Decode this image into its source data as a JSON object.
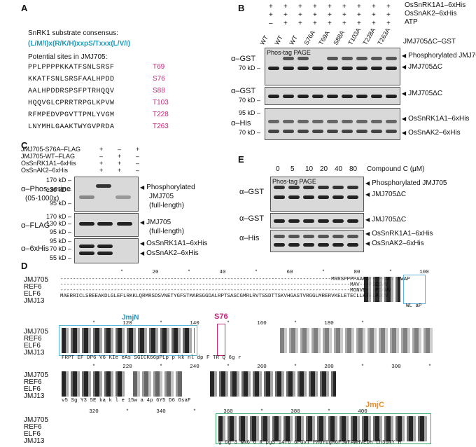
{
  "panelA": {
    "label": "A",
    "consensus_title": "SnRK1 substrate consensus:",
    "consensus_seq": "(L/M/I)x(R/K/H)xxpS/Txxx(L/V/I)",
    "potential_title": "Potential sites in JMJ705:",
    "sites": [
      {
        "seq": "PPLPPPPKKATFSNLSRSF",
        "site": "T69"
      },
      {
        "seq": "KKATFSNLSRSFAALHPDD",
        "site": "S76"
      },
      {
        "seq": "AALHPDDRSPSFPTRHQQV",
        "site": "S88"
      },
      {
        "seq": "HQQVGLCPRRTRPGLKPVW",
        "site": "T103"
      },
      {
        "seq": "RFMPEDVPGVTTPMLYVGM",
        "site": "T228"
      },
      {
        "seq": "LNYMHLGAAKTWYGVPRDA",
        "site": "T263"
      }
    ]
  },
  "panelB": {
    "label": "B",
    "row_labels": [
      "OsSnRK1A1–6xHis",
      "OsSnAK2–6xHis",
      "ATP"
    ],
    "row_signs": [
      [
        "+",
        "+",
        "+",
        "+",
        "+",
        "+",
        "+",
        "+",
        "+"
      ],
      [
        "+",
        "+",
        "+",
        "+",
        "+",
        "+",
        "+",
        "+",
        "+"
      ],
      [
        "–",
        "+",
        "+",
        "+",
        "+",
        "+",
        "+",
        "+",
        "+"
      ]
    ],
    "lanes": [
      "WT",
      "WT",
      "WT",
      "S76A",
      "T69A",
      "S88A",
      "T103A",
      "T228A",
      "T263A"
    ],
    "construct": "JMJ705ΔC–GST",
    "blot1_ab": "α–GST",
    "blot1_tag": "Phos-tag PAGE",
    "blot1_mw": "70 kD",
    "blot1_bands": [
      "Phosphorylated JMJ705",
      "JMJ705ΔC"
    ],
    "blot2_ab": "α–GST",
    "blot2_mw": "70 kD",
    "blot2_bands": [
      "JMJ705ΔC"
    ],
    "blot3_ab": "α–His",
    "blot3_mw": [
      "95 kD",
      "70 kD"
    ],
    "blot3_bands": [
      "OsSnRK1A1–6xHis",
      "OsSnAK2–6xHis"
    ]
  },
  "panelC": {
    "label": "C",
    "row_labels": [
      "JMJ705-S76A–FLAG",
      "JMJ705-WT–FLAG",
      "OsSnRK1A1–6xHis",
      "OsSnAK2–6xHis"
    ],
    "row_signs": [
      [
        "+",
        "–",
        "+"
      ],
      [
        "–",
        "+",
        "–"
      ],
      [
        "+",
        "+",
        "–"
      ],
      [
        "+",
        "+",
        "–"
      ]
    ],
    "blot1_ab": "α–Phos-serine",
    "blot1_ab2": "(05-1000x)",
    "blot1_mw": [
      "170 kD",
      "130 kD",
      "95 kD"
    ],
    "blot1_bands": [
      "Phosphorylated",
      "JMJ705",
      "(full-length)"
    ],
    "blot2_ab": "α–FLAG",
    "blot2_mw": [
      "170 kD",
      "130 kD",
      "95 kD"
    ],
    "blot2_bands": [
      "JMJ705",
      "(full-length)"
    ],
    "blot3_ab": "α–6xHis",
    "blot3_mw": [
      "95 kD",
      "70 kD",
      "55 kD"
    ],
    "blot3_bands": [
      "OsSnRK1A1–6xHis",
      "OsSnAK2–6xHis"
    ]
  },
  "panelE": {
    "label": "E",
    "concentrations": [
      "0",
      "5",
      "10",
      "20",
      "40",
      "80"
    ],
    "compound": "Compound C (μM)",
    "blot1_ab": "α–GST",
    "blot1_tag": "Phos-tag PAGE",
    "blot1_bands": [
      "Phosphorylated JMJ705",
      "JMJ705ΔC"
    ],
    "blot2_ab": "α–GST",
    "blot2_bands": [
      "JMJ705ΔC"
    ],
    "blot3_ab": "α–His",
    "blot3_bands": [
      "OsSnRK1A1–6xHis",
      "OsSnAK2–6xHis"
    ]
  },
  "panelD": {
    "label": "D",
    "names": [
      "JMJ705",
      "REF6",
      "ELF6",
      "JMJ13"
    ],
    "ruler1": [
      "*",
      "20",
      "*",
      "40",
      "*",
      "60",
      "*",
      "80",
      "*",
      "100"
    ],
    "ruler2": [
      "*",
      "120",
      "*",
      "140",
      "*",
      "160",
      "*",
      "180",
      "*"
    ],
    "ruler3": [
      "*",
      "220",
      "*",
      "240",
      "*",
      "260",
      "*",
      "280",
      "*",
      "300",
      "*"
    ],
    "ruler4": [
      "320",
      "*",
      "340",
      "*",
      "360",
      "*",
      "380",
      "*",
      "400"
    ],
    "jmjn": "JmjN",
    "s76": "S76",
    "jmjc": "JmjC",
    "row1_seqs": [
      "--------------------------------------------------------------------------------------MRRSPPPPAAPAPE-PFALV LWAP",
      "--------------------------------------------------------------------------------------------MAV---PSESWV",
      "--------------------------------------------------------------------------------------------MGNVE---PIAWV",
      "MAERRICLSREEAKDLGLEFLRKKLQRMRSDSVNETYGFSTMARSGGDALRPTSASCGMRLRVTSSDTTSKVHGASTVRGGLMRERVKELETECLLKTELPDCV"
    ],
    "row1_cons": "WL aP",
    "row2_cons": "FRPT  EF DP6 V6 KIe eAs SGICK66pPLp p kk   nl  dp                F TR  Q  6g                r",
    "row3_cons": "v5  Sg  Y3   5E  ka     k     l                 e  15w a   4p    6Y5  D6 GsaF",
    "row4_cons": "g  6g 3 WN6  6 R pgS 14f6  6PGVT PM6Y6gM6F5WFAWHVEDH Lh56NY H"
  }
}
